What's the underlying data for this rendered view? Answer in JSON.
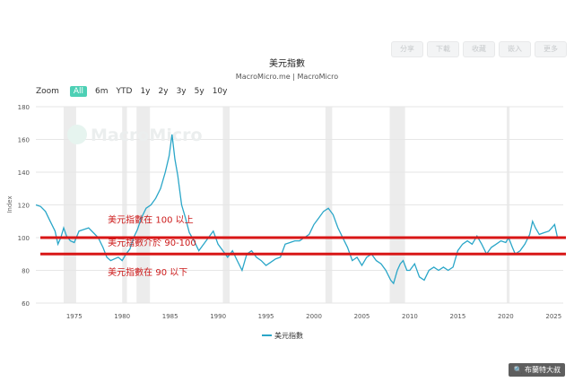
{
  "toolbar": {
    "buttons": [
      "分享",
      "下載",
      "收藏",
      "嵌入",
      "更多"
    ]
  },
  "zoom": {
    "label": "Zoom",
    "options": [
      "All",
      "6m",
      "YTD",
      "1y",
      "2y",
      "3y",
      "5y",
      "10y"
    ],
    "selected": "All"
  },
  "watermark": "MacroMicro",
  "credit": "布蘭特大叔",
  "colors": {
    "line": "#2aa6c8",
    "band_lines": "#d81616",
    "annotation": "#cc1a1a",
    "recession": "#ececec",
    "zoom_active": "#4dd0b5"
  },
  "chart_data": {
    "type": "line",
    "title": "美元指數",
    "subtitle": "MacroMicro.me | MacroMicro",
    "ylabel": "Index",
    "xlabel": "",
    "ylim": [
      60,
      180
    ],
    "xlim": [
      1971,
      2026
    ],
    "yticks": [
      60,
      80,
      100,
      120,
      140,
      160,
      180
    ],
    "xticks": [
      1975,
      1980,
      1985,
      1990,
      1995,
      2000,
      2005,
      2010,
      2015,
      2020,
      2025
    ],
    "grid": "horizontal",
    "legend_position": "bottom",
    "series": [
      {
        "name": "美元指數",
        "x": [
          1971.0,
          1971.5,
          1972.0,
          1972.5,
          1973.0,
          1973.3,
          1973.6,
          1973.9,
          1974.2,
          1974.6,
          1975.0,
          1975.5,
          1976.0,
          1976.5,
          1977.0,
          1977.5,
          1978.0,
          1978.4,
          1978.8,
          1979.2,
          1979.6,
          1980.0,
          1980.4,
          1980.8,
          1981.2,
          1981.6,
          1982.0,
          1982.5,
          1983.0,
          1983.5,
          1984.0,
          1984.5,
          1984.9,
          1985.2,
          1985.5,
          1985.8,
          1986.2,
          1986.6,
          1987.0,
          1987.5,
          1988.0,
          1988.5,
          1989.0,
          1989.5,
          1990.0,
          1990.5,
          1991.0,
          1991.5,
          1992.0,
          1992.5,
          1993.0,
          1993.5,
          1994.0,
          1994.5,
          1995.0,
          1995.5,
          1996.0,
          1996.5,
          1997.0,
          1997.5,
          1998.0,
          1998.5,
          1999.0,
          1999.5,
          2000.0,
          2000.5,
          2001.0,
          2001.5,
          2002.0,
          2002.5,
          2003.0,
          2003.5,
          2004.0,
          2004.5,
          2005.0,
          2005.5,
          2006.0,
          2006.5,
          2007.0,
          2007.5,
          2008.0,
          2008.3,
          2008.7,
          2009.0,
          2009.3,
          2009.7,
          2010.0,
          2010.5,
          2011.0,
          2011.5,
          2012.0,
          2012.5,
          2013.0,
          2013.5,
          2014.0,
          2014.5,
          2015.0,
          2015.5,
          2016.0,
          2016.5,
          2017.0,
          2017.5,
          2018.0,
          2018.5,
          2019.0,
          2019.5,
          2020.0,
          2020.3,
          2020.7,
          2021.0,
          2021.5,
          2022.0,
          2022.5,
          2022.8,
          2023.1,
          2023.5,
          2024.0,
          2024.5,
          2024.8,
          2025.1,
          2025.4
        ],
        "values": [
          120,
          119,
          116,
          110,
          104,
          96,
          100,
          106,
          101,
          98,
          97,
          104,
          105,
          106,
          103,
          100,
          94,
          88,
          86,
          87,
          88,
          86,
          90,
          93,
          100,
          105,
          112,
          118,
          120,
          124,
          130,
          140,
          150,
          163,
          148,
          138,
          120,
          112,
          103,
          98,
          92,
          96,
          100,
          104,
          96,
          92,
          88,
          92,
          86,
          80,
          90,
          92,
          88,
          86,
          83,
          85,
          87,
          88,
          96,
          97,
          98,
          98,
          100,
          102,
          108,
          112,
          116,
          118,
          114,
          106,
          100,
          94,
          86,
          88,
          83,
          88,
          90,
          86,
          84,
          80,
          74,
          72,
          80,
          84,
          86,
          80,
          80,
          84,
          76,
          74,
          80,
          82,
          80,
          82,
          80,
          82,
          92,
          96,
          98,
          96,
          101,
          96,
          90,
          94,
          96,
          98,
          97,
          100,
          94,
          90,
          92,
          96,
          102,
          110,
          106,
          102,
          103,
          104,
          106,
          108,
          100
        ]
      }
    ],
    "reference_lines": [
      100,
      90
    ],
    "recession_bands": [
      [
        1973.9,
        1975.2
      ],
      [
        1980.0,
        1980.5
      ],
      [
        1981.5,
        1982.9
      ],
      [
        1990.5,
        1991.2
      ],
      [
        2001.2,
        2001.9
      ],
      [
        2007.9,
        2009.5
      ],
      [
        2020.1,
        2020.4
      ]
    ],
    "annotations": [
      {
        "text": "美元指數在 100 以上",
        "x": 1978.5,
        "y": 109
      },
      {
        "text": "美元指數介於 90-100",
        "x": 1978.5,
        "y": 95
      },
      {
        "text": "美元指數在 90 以下",
        "x": 1978.5,
        "y": 77
      }
    ]
  }
}
